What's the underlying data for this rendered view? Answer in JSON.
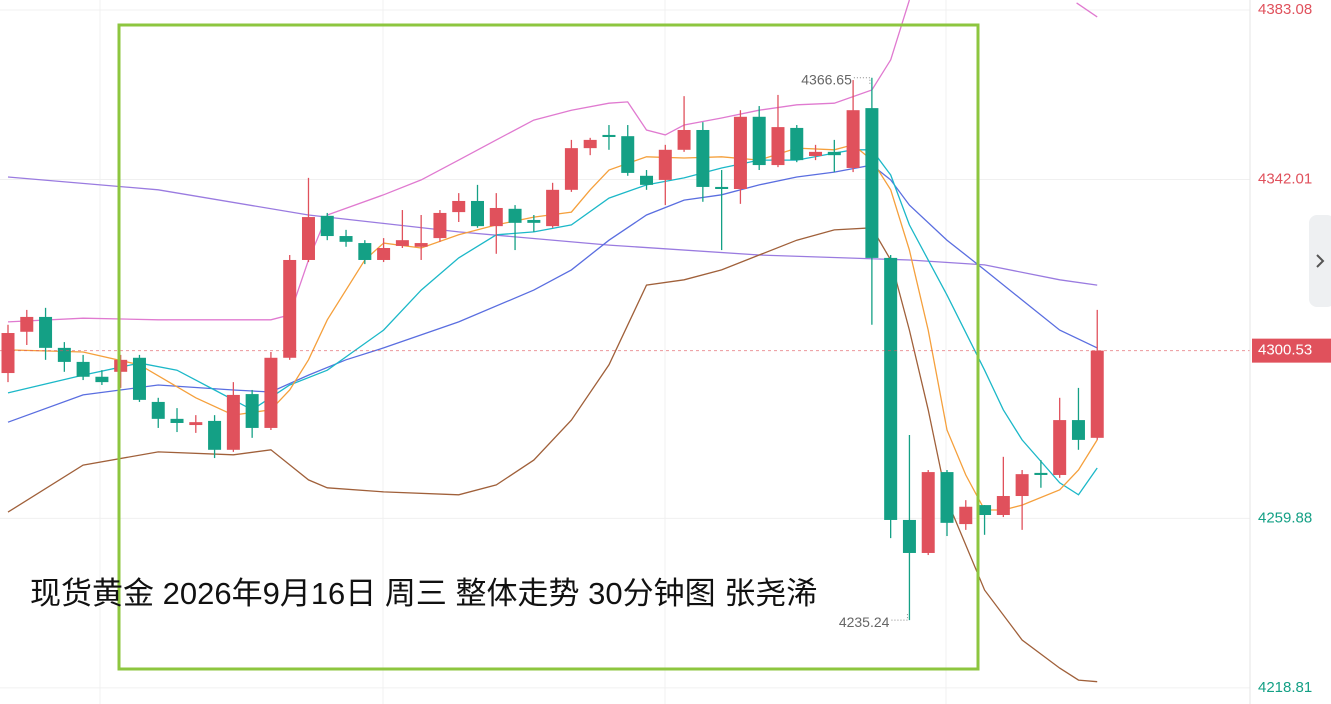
{
  "chart_data": {
    "type": "candlestick",
    "title": "现货黄金 2026年9月16日 周三 整体走势 30分钟图 张尧浠",
    "ylim": [
      4214.9,
      4385.5
    ],
    "yticks": [
      4383.08,
      4342.01,
      4259.88,
      4218.81
    ],
    "grid": true,
    "up_color": "#e0515c",
    "down_color": "#14a085",
    "open": [
      4295.1,
      4305.1,
      4308.7,
      4301.2,
      4297.8,
      4294.2,
      4295.4,
      4298.8,
      4288.1,
      4284.0,
      4282.5,
      4283.5,
      4276.5,
      4290.0,
      4281.8,
      4298.8,
      4322.5,
      4333.2,
      4328.3,
      4326.6,
      4322.5,
      4325.9,
      4325.7,
      4327.8,
      4334.1,
      4336.8,
      4330.7,
      4334.9,
      4332.2,
      4330.7,
      4339.5,
      4349.6,
      4352.8,
      4352.5,
      4342.9,
      4341.9,
      4349.2,
      4354.0,
      4340.2,
      4339.7,
      4357.2,
      4345.5,
      4354.5,
      4347.7,
      4348.7,
      4344.8,
      4359.3,
      4323.0,
      4259.5,
      4251.5,
      4271.1,
      4258.5,
      4263.1,
      4260.7,
      4265.3,
      4270.9,
      4270.4,
      4283.7,
      4279.4
    ],
    "high": [
      4306.8,
      4310.4,
      4310.9,
      4302.6,
      4299.5,
      4295.8,
      4299.5,
      4299.5,
      4289.1,
      4286.6,
      4284.9,
      4284.9,
      4292.9,
      4291.0,
      4300.2,
      4323.7,
      4342.4,
      4333.9,
      4329.8,
      4327.3,
      4327.8,
      4334.6,
      4333.4,
      4334.6,
      4338.7,
      4340.7,
      4338.7,
      4335.8,
      4333.4,
      4341.2,
      4351.6,
      4352.1,
      4355.2,
      4355.2,
      4344.3,
      4350.4,
      4362.2,
      4355.9,
      4344.3,
      4358.8,
      4359.8,
      4362.5,
      4355.2,
      4350.4,
      4351.6,
      4366.1,
      4366.65,
      4323.7,
      4280.1,
      4271.6,
      4271.6,
      4264.3,
      4263.1,
      4274.8,
      4271.6,
      4274.0,
      4289.1,
      4291.5,
      4310.4
    ],
    "low": [
      4292.9,
      4301.9,
      4298.3,
      4295.4,
      4293.4,
      4292.2,
      4291.5,
      4288.1,
      4281.8,
      4280.8,
      4280.6,
      4274.5,
      4276.0,
      4279.4,
      4281.3,
      4298.3,
      4322.0,
      4327.3,
      4325.7,
      4321.5,
      4322.0,
      4325.4,
      4322.5,
      4326.9,
      4331.7,
      4330.3,
      4324.0,
      4324.9,
      4329.3,
      4330.3,
      4339.0,
      4347.9,
      4349.2,
      4342.9,
      4339.5,
      4335.8,
      4348.7,
      4336.6,
      4324.9,
      4336.1,
      4344.3,
      4345.0,
      4346.2,
      4346.7,
      4343.8,
      4343.8,
      4306.8,
      4255.1,
      4235.24,
      4251.0,
      4255.6,
      4257.1,
      4255.9,
      4260.2,
      4257.1,
      4267.3,
      4269.7,
      4276.5,
      4278.9
    ],
    "close": [
      4304.8,
      4308.7,
      4301.2,
      4297.8,
      4294.2,
      4292.9,
      4298.3,
      4288.6,
      4284.0,
      4283.0,
      4283.2,
      4276.5,
      4289.8,
      4281.8,
      4298.8,
      4322.5,
      4332.9,
      4328.3,
      4326.9,
      4322.5,
      4325.4,
      4327.3,
      4326.6,
      4333.9,
      4336.8,
      4330.7,
      4335.1,
      4331.5,
      4331.5,
      4339.5,
      4349.6,
      4351.6,
      4352.3,
      4343.6,
      4340.7,
      4349.2,
      4354.0,
      4340.2,
      4339.7,
      4357.2,
      4345.5,
      4354.7,
      4346.7,
      4348.7,
      4347.9,
      4358.8,
      4323.0,
      4259.5,
      4251.5,
      4271.1,
      4258.8,
      4262.7,
      4260.7,
      4265.3,
      4270.6,
      4270.4,
      4283.7,
      4278.9,
      4300.53
    ],
    "lines": [
      {
        "color": "#9a7be0",
        "x": [
          0,
          8,
          16,
          24,
          32,
          40,
          48,
          52,
          56,
          58
        ],
        "values": [
          4342.6,
          4339.5,
          4333.4,
          4329.3,
          4326.1,
          4323.7,
          4322.5,
          4321.3,
          4317.7,
          4316.4
        ]
      },
      {
        "color": "#e07ad0",
        "x": [
          0,
          4,
          8,
          12,
          14,
          15,
          16,
          17,
          20,
          22,
          24,
          26,
          28,
          30,
          32,
          33,
          34,
          35,
          36,
          38,
          40,
          42,
          44,
          46,
          47,
          48,
          52,
          56.9,
          58
        ],
        "values": [
          4307.5,
          4308.4,
          4308.0,
          4308.0,
          4308.0,
          4309.2,
          4322.5,
          4333.4,
          4338.3,
          4341.9,
          4346.7,
          4351.6,
          4356.4,
          4358.8,
          4360.5,
          4360.8,
          4354.0,
          4352.8,
          4355.2,
          4356.9,
          4358.8,
          4360.1,
          4360.5,
          4363.7,
          4371.0,
          4385.5,
          null,
          4384.8,
          4381.4
        ]
      },
      {
        "color": "#a0603a",
        "x": [
          0,
          4,
          8,
          12,
          14,
          16,
          17,
          20,
          24,
          26,
          28,
          30,
          32,
          34,
          36,
          38,
          40,
          42,
          44,
          46,
          47,
          48,
          49,
          50,
          52,
          54,
          56,
          57,
          58
        ],
        "values": [
          4261.4,
          4272.8,
          4276.0,
          4275.3,
          4276.5,
          4269.2,
          4267.3,
          4266.3,
          4265.6,
          4268.0,
          4274.0,
          4283.7,
          4297.1,
          4316.4,
          4317.7,
          4320.1,
          4323.7,
          4327.3,
          4329.8,
          4330.3,
          4322.5,
          4305.5,
          4286.2,
          4264.3,
          4242.5,
          4230.4,
          4223.6,
          4220.7,
          4220.3
        ]
      },
      {
        "color": "#5a6ee0",
        "x": [
          0,
          4,
          8,
          12,
          14,
          16,
          18,
          20,
          24,
          28,
          30,
          32,
          34,
          36,
          38,
          40,
          42,
          44,
          46,
          47,
          48,
          50,
          52,
          54,
          56,
          58
        ],
        "values": [
          4283.2,
          4289.8,
          4292.2,
          4291.0,
          4290.5,
          4294.6,
          4298.3,
          4301.2,
          4307.5,
          4315.2,
          4320.1,
          4327.3,
          4333.4,
          4337.0,
          4338.3,
          4340.7,
          4342.6,
          4343.8,
          4345.5,
          4341.9,
          4335.8,
          4327.3,
          4320.1,
          4312.8,
          4305.5,
          4301.2
        ]
      },
      {
        "color": "#1cb8c8",
        "x": [
          0,
          4,
          7,
          9,
          11,
          13,
          15,
          17,
          20,
          22,
          24,
          26,
          28,
          30,
          32,
          34,
          36,
          38,
          40,
          42,
          44,
          45,
          46,
          47,
          48,
          50,
          52,
          53,
          54,
          56,
          57,
          58
        ],
        "values": [
          4290.3,
          4294.6,
          4297.5,
          4295.8,
          4291.0,
          4286.2,
          4292.2,
          4295.8,
          4305.5,
          4315.2,
          4323.0,
          4328.6,
          4329.3,
          4331.0,
          4337.5,
          4340.7,
          4342.4,
          4344.8,
          4346.7,
          4346.7,
          4348.4,
          4349.2,
          4349.2,
          4343.1,
          4331.0,
          4314.0,
          4295.8,
          4286.2,
          4278.9,
          4268.5,
          4265.6,
          4272.1
        ]
      },
      {
        "color": "#f5a03c",
        "x": [
          0,
          4,
          7,
          10,
          12,
          14,
          15,
          16,
          17,
          19,
          20,
          22,
          24,
          26,
          28,
          30,
          31,
          32,
          34,
          36,
          38,
          40,
          42,
          44,
          45,
          46,
          47,
          48,
          49,
          50,
          51,
          52,
          53,
          54,
          56,
          57,
          58
        ],
        "values": [
          4300.7,
          4300.2,
          4297.1,
          4289.1,
          4284.9,
          4286.2,
          4291.0,
          4298.3,
          4308.0,
          4322.5,
          4326.6,
          4325.4,
          4328.6,
          4331.0,
          4332.9,
          4334.1,
          4339.5,
          4344.3,
          4347.5,
          4347.2,
          4347.5,
          4346.7,
          4349.6,
          4349.2,
          4350.4,
          4346.7,
          4339.5,
          4324.9,
          4305.5,
          4281.3,
          4270.4,
          4261.9,
          4261.9,
          4263.1,
          4266.8,
          4271.6,
          4278.9
        ]
      }
    ]
  }
}
